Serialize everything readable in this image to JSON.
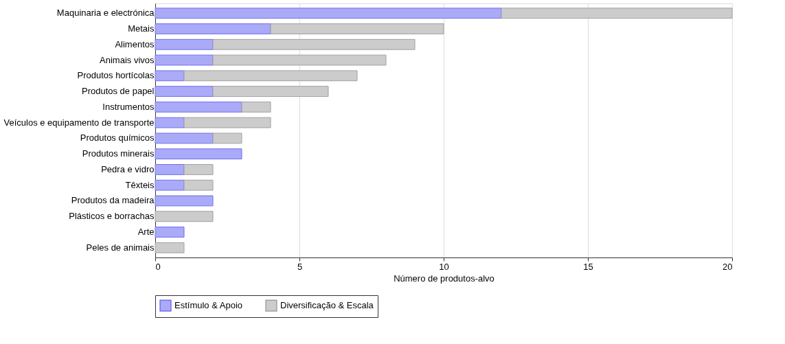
{
  "chart_data": {
    "type": "bar",
    "orientation": "horizontal",
    "stacked": true,
    "categories": [
      "Maquinaria e electrónica",
      "Metais",
      "Alimentos",
      "Animais vivos",
      "Produtos hortícolas",
      "Produtos de papel",
      "Instrumentos",
      "Veículos e equipamento de transporte",
      "Produtos químicos",
      "Produtos minerais",
      "Pedra e vidro",
      "Têxteis",
      "Produtos da madeira",
      "Plásticos e borrachas",
      "Arte",
      "Peles de animais"
    ],
    "series": [
      {
        "name": "Estímulo & Apoio",
        "color": "#aaaaf8",
        "values": [
          12,
          4,
          2,
          2,
          1,
          2,
          3,
          1,
          2,
          3,
          1,
          1,
          2,
          0,
          1,
          0
        ]
      },
      {
        "name": "Diversificação & Escala",
        "color": "#cccccc",
        "values": [
          8,
          6,
          7,
          6,
          6,
          4,
          1,
          3,
          1,
          0,
          1,
          1,
          0,
          2,
          0,
          1
        ]
      }
    ],
    "xlabel": "Número de produtos-alvo",
    "xlim": [
      0,
      20
    ],
    "xticks": [
      0,
      5,
      10,
      15,
      20
    ],
    "grid": "x",
    "legend": "bottom"
  }
}
